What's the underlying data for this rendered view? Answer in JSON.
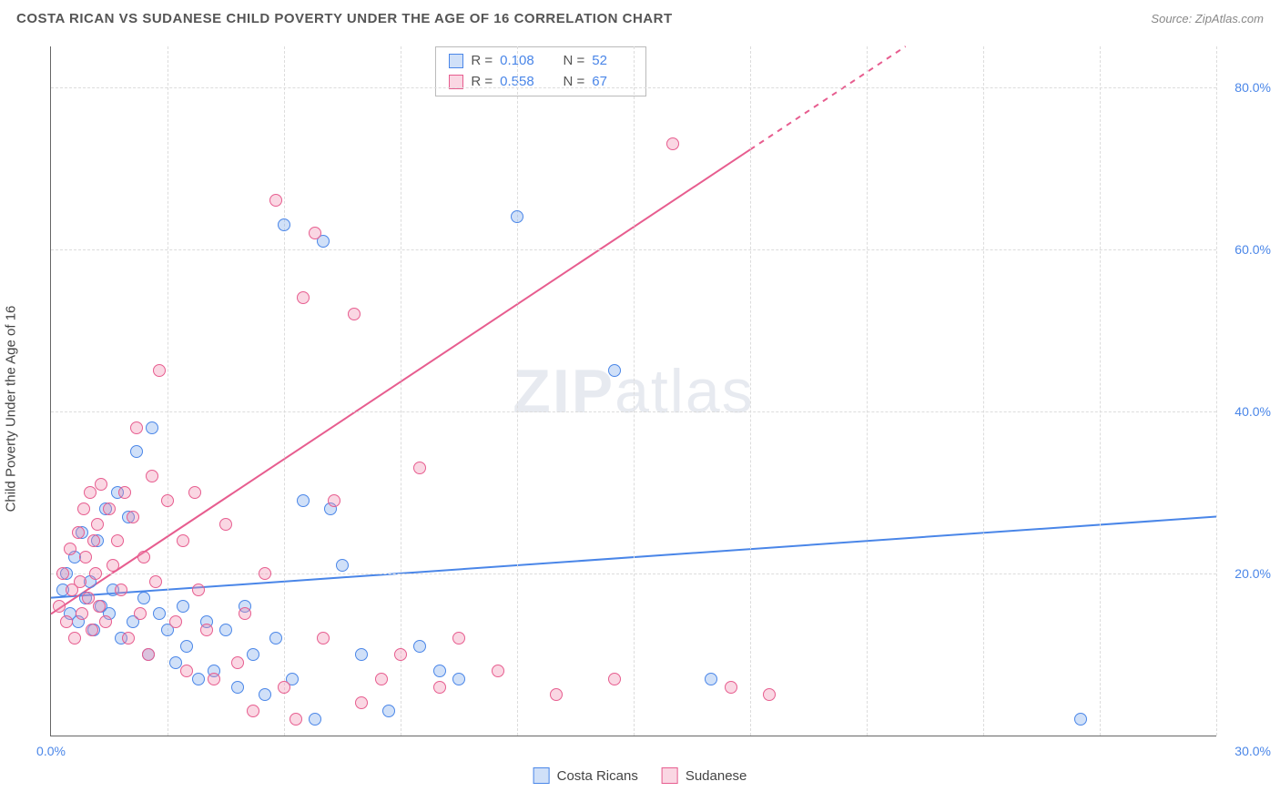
{
  "title": "COSTA RICAN VS SUDANESE CHILD POVERTY UNDER THE AGE OF 16 CORRELATION CHART",
  "source_label": "Source:",
  "source_value": "ZipAtlas.com",
  "watermark": {
    "prefix": "ZIP",
    "suffix": "atlas"
  },
  "yaxis_title": "Child Poverty Under the Age of 16",
  "chart": {
    "type": "scatter",
    "xlim": [
      0,
      30
    ],
    "ylim": [
      0,
      85
    ],
    "xtick_labels": [
      "0.0%",
      "30.0%"
    ],
    "ytick_values": [
      20,
      40,
      60,
      80
    ],
    "ytick_labels": [
      "20.0%",
      "40.0%",
      "60.0%",
      "80.0%"
    ],
    "xgrid_values": [
      3,
      6,
      9,
      12,
      15,
      18,
      21,
      24,
      27,
      30
    ],
    "background_color": "#ffffff",
    "grid_color": "#dcdcdc",
    "axis_color": "#666666",
    "tick_label_color": "#4a86e8",
    "marker_radius": 7,
    "marker_opacity": 0.55,
    "series": [
      {
        "id": "costa_ricans",
        "label": "Costa Ricans",
        "color_stroke": "#4a86e8",
        "color_fill": "rgba(120,165,235,0.35)",
        "R": "0.108",
        "N": "52",
        "regression": {
          "x1": 0,
          "y1": 17,
          "x2": 30,
          "y2": 27,
          "width": 2
        },
        "points": [
          [
            0.3,
            18
          ],
          [
            0.4,
            20
          ],
          [
            0.5,
            15
          ],
          [
            0.6,
            22
          ],
          [
            0.7,
            14
          ],
          [
            0.8,
            25
          ],
          [
            0.9,
            17
          ],
          [
            1.0,
            19
          ],
          [
            1.1,
            13
          ],
          [
            1.2,
            24
          ],
          [
            1.3,
            16
          ],
          [
            1.4,
            28
          ],
          [
            1.5,
            15
          ],
          [
            1.6,
            18
          ],
          [
            1.7,
            30
          ],
          [
            1.8,
            12
          ],
          [
            2.0,
            27
          ],
          [
            2.1,
            14
          ],
          [
            2.2,
            35
          ],
          [
            2.4,
            17
          ],
          [
            2.5,
            10
          ],
          [
            2.6,
            38
          ],
          [
            2.8,
            15
          ],
          [
            3.0,
            13
          ],
          [
            3.2,
            9
          ],
          [
            3.4,
            16
          ],
          [
            3.5,
            11
          ],
          [
            3.8,
            7
          ],
          [
            4.0,
            14
          ],
          [
            4.2,
            8
          ],
          [
            4.5,
            13
          ],
          [
            4.8,
            6
          ],
          [
            5.0,
            16
          ],
          [
            5.2,
            10
          ],
          [
            5.5,
            5
          ],
          [
            5.8,
            12
          ],
          [
            6.0,
            63
          ],
          [
            6.2,
            7
          ],
          [
            6.5,
            29
          ],
          [
            6.8,
            2
          ],
          [
            7.0,
            61
          ],
          [
            7.2,
            28
          ],
          [
            7.5,
            21
          ],
          [
            8.0,
            10
          ],
          [
            8.7,
            3
          ],
          [
            9.5,
            11
          ],
          [
            10.0,
            8
          ],
          [
            10.5,
            7
          ],
          [
            12.0,
            64
          ],
          [
            14.5,
            45
          ],
          [
            17.0,
            7
          ],
          [
            26.5,
            2
          ]
        ]
      },
      {
        "id": "sudanese",
        "label": "Sudanese",
        "color_stroke": "#e75d8f",
        "color_fill": "rgba(240,140,175,0.35)",
        "R": "0.558",
        "N": "67",
        "regression": {
          "x1": 0,
          "y1": 15,
          "x2": 22,
          "y2": 85,
          "dash_after_x": 18,
          "width": 2
        },
        "points": [
          [
            0.2,
            16
          ],
          [
            0.3,
            20
          ],
          [
            0.4,
            14
          ],
          [
            0.5,
            23
          ],
          [
            0.55,
            18
          ],
          [
            0.6,
            12
          ],
          [
            0.7,
            25
          ],
          [
            0.75,
            19
          ],
          [
            0.8,
            15
          ],
          [
            0.85,
            28
          ],
          [
            0.9,
            22
          ],
          [
            0.95,
            17
          ],
          [
            1.0,
            30
          ],
          [
            1.05,
            13
          ],
          [
            1.1,
            24
          ],
          [
            1.15,
            20
          ],
          [
            1.2,
            26
          ],
          [
            1.25,
            16
          ],
          [
            1.3,
            31
          ],
          [
            1.4,
            14
          ],
          [
            1.5,
            28
          ],
          [
            1.6,
            21
          ],
          [
            1.7,
            24
          ],
          [
            1.8,
            18
          ],
          [
            1.9,
            30
          ],
          [
            2.0,
            12
          ],
          [
            2.1,
            27
          ],
          [
            2.2,
            38
          ],
          [
            2.3,
            15
          ],
          [
            2.4,
            22
          ],
          [
            2.5,
            10
          ],
          [
            2.6,
            32
          ],
          [
            2.7,
            19
          ],
          [
            2.8,
            45
          ],
          [
            3.0,
            29
          ],
          [
            3.2,
            14
          ],
          [
            3.4,
            24
          ],
          [
            3.5,
            8
          ],
          [
            3.7,
            30
          ],
          [
            3.8,
            18
          ],
          [
            4.0,
            13
          ],
          [
            4.2,
            7
          ],
          [
            4.5,
            26
          ],
          [
            4.8,
            9
          ],
          [
            5.0,
            15
          ],
          [
            5.2,
            3
          ],
          [
            5.5,
            20
          ],
          [
            5.8,
            66
          ],
          [
            6.0,
            6
          ],
          [
            6.3,
            2
          ],
          [
            6.5,
            54
          ],
          [
            6.8,
            62
          ],
          [
            7.0,
            12
          ],
          [
            7.3,
            29
          ],
          [
            7.8,
            52
          ],
          [
            8.0,
            4
          ],
          [
            8.5,
            7
          ],
          [
            9.0,
            10
          ],
          [
            9.5,
            33
          ],
          [
            10.0,
            6
          ],
          [
            10.5,
            12
          ],
          [
            11.5,
            8
          ],
          [
            13.0,
            5
          ],
          [
            14.5,
            7
          ],
          [
            16.0,
            73
          ],
          [
            17.5,
            6
          ],
          [
            18.5,
            5
          ]
        ]
      }
    ]
  },
  "stats_box": {
    "rows": [
      {
        "series": "costa_ricans",
        "r_label": "R =",
        "n_label": "N ="
      },
      {
        "series": "sudanese",
        "r_label": "R =",
        "n_label": "N ="
      }
    ]
  }
}
